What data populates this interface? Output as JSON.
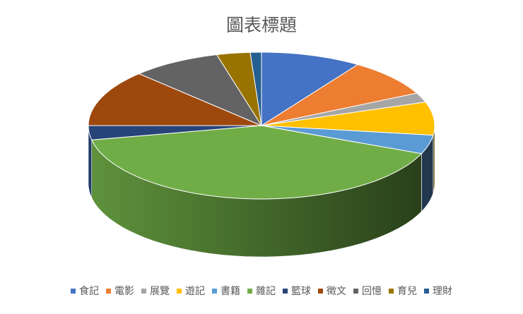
{
  "chart_data": {
    "type": "pie",
    "style": "3d",
    "title": "圖表標題",
    "categories": [
      "食記",
      "電影",
      "展覽",
      "遊記",
      "書籍",
      "雜記",
      "籃球",
      "徵文",
      "回憶",
      "育兒",
      "理財"
    ],
    "values": [
      9,
      8,
      2,
      7,
      4,
      39,
      3,
      12,
      8,
      3,
      1
    ],
    "colors": [
      "#4472C4",
      "#ED7D31",
      "#A5A5A5",
      "#FFC000",
      "#5B9BD5",
      "#70AD47",
      "#264478",
      "#9E480E",
      "#636363",
      "#997300",
      "#255E91"
    ],
    "legend": "bottom"
  }
}
